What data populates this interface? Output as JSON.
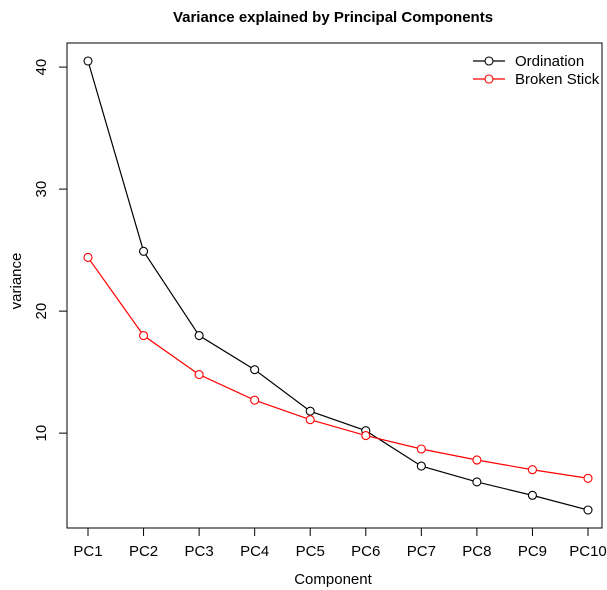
{
  "chart_data": {
    "type": "line",
    "title": "Variance explained by Principal Components",
    "xlabel": "Component",
    "ylabel": "variance",
    "categories": [
      "PC1",
      "PC2",
      "PC3",
      "PC4",
      "PC5",
      "PC6",
      "PC7",
      "PC8",
      "PC9",
      "PC10"
    ],
    "yticks": [
      10,
      20,
      30,
      40
    ],
    "ylim": [
      3.7,
      40.5
    ],
    "grid": false,
    "legend_position": "top-right",
    "series": [
      {
        "name": "Ordination",
        "color": "#000000",
        "values": [
          40.5,
          24.9,
          18.0,
          15.2,
          11.8,
          10.2,
          7.3,
          6.0,
          4.9,
          3.7
        ]
      },
      {
        "name": "Broken Stick",
        "color": "#ff0000",
        "values": [
          24.4,
          18.0,
          14.8,
          12.7,
          11.1,
          9.8,
          8.7,
          7.8,
          7.0,
          6.3
        ]
      }
    ]
  }
}
